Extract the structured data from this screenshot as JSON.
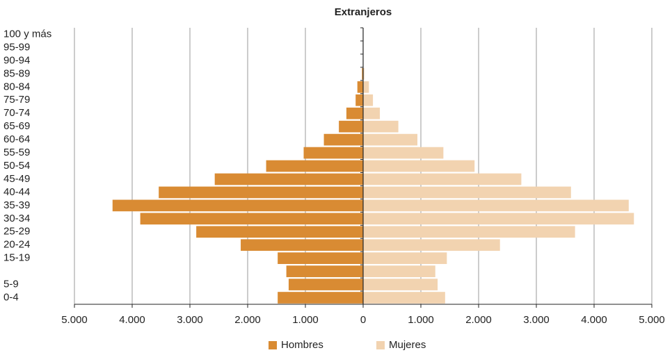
{
  "chart_data": {
    "type": "pyramid",
    "title": "Extranjeros",
    "categories": [
      "100 y más",
      "95-99",
      "90-94",
      "85-89",
      "80-84",
      "75-79",
      "70-74",
      "65-69",
      "60-64",
      "55-59",
      "50-54",
      "45-49",
      "40-44",
      "35-39",
      "30-34",
      "25-29",
      "20-24",
      "15-19",
      null,
      "5-9",
      "0-4"
    ],
    "series": [
      {
        "name": "Hombres",
        "color": "#d98b33",
        "values": [
          0,
          0,
          0,
          -20,
          -100,
          -130,
          -290,
          -420,
          -680,
          -1030,
          -1680,
          -2570,
          -3540,
          -4340,
          -3860,
          -2890,
          -2120,
          -1480,
          -1330,
          -1290,
          -1480
        ]
      },
      {
        "name": "Mujeres",
        "color": "#f2d3b0",
        "values": [
          0,
          0,
          0,
          20,
          100,
          170,
          290,
          610,
          940,
          1390,
          1930,
          2740,
          3600,
          4600,
          4690,
          3670,
          2370,
          1450,
          1250,
          1290,
          1420
        ]
      }
    ],
    "xlim": [
      -5000,
      5000
    ],
    "xticks": [
      {
        "value": -5000,
        "label": "5.000"
      },
      {
        "value": -4000,
        "label": "4.000"
      },
      {
        "value": -3000,
        "label": "3.000"
      },
      {
        "value": -2000,
        "label": "2.000"
      },
      {
        "value": -1000,
        "label": "1.000"
      },
      0,
      {
        "value": 1000,
        "label": "1.000"
      },
      {
        "value": 2000,
        "label": "2.000"
      },
      {
        "value": 3000,
        "label": "3.000"
      },
      {
        "value": 4000,
        "label": "4.000"
      },
      {
        "value": 5000,
        "label": "5.000"
      }
    ],
    "grid": true,
    "legend": "bottom"
  }
}
